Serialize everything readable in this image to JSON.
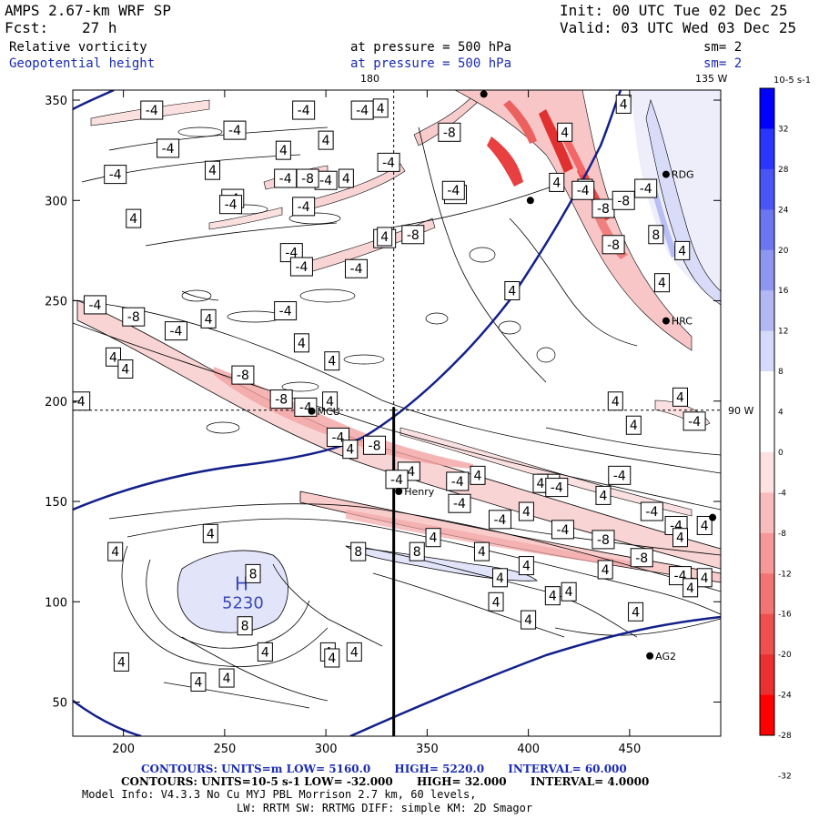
{
  "header": {
    "model_name": "AMPS 2.67-km WRF SP",
    "init": "Init: 00 UTC Tue 02 Dec 25",
    "fcst_label": "Fcst:",
    "fcst_value": "27 h",
    "valid": "Valid: 03 UTC Wed 03 Dec 25",
    "field1_name": "Relative vorticity",
    "field1_level": "at pressure =  500 hPa",
    "field1_sm": "sm= 2",
    "field2_name": "Geopotential height",
    "field2_level": "at pressure =  500 hPa",
    "field2_sm": "sm= 2"
  },
  "map": {
    "lon_top_180": "180",
    "lon_top_135": "135 W",
    "lat_right_90": "90 W",
    "stations": [
      {
        "name": "RDG",
        "x": 468,
        "y": 313
      },
      {
        "name": "HRC",
        "x": 468,
        "y": 240
      },
      {
        "name": "MCU",
        "x": 293,
        "y": 195
      },
      {
        "name": "Henry",
        "x": 336,
        "y": 155
      },
      {
        "name": "AG2",
        "x": 460,
        "y": 73
      },
      {
        "name": "",
        "x": 378,
        "y": 353
      },
      {
        "name": "",
        "x": 401,
        "y": 300
      },
      {
        "name": "",
        "x": 491,
        "y": 142
      }
    ],
    "high_label": "H",
    "high_value": "5230",
    "high_pos": {
      "x": 255,
      "y": 103
    }
  },
  "chart_data": {
    "type": "contour",
    "xlim": [
      175,
      495
    ],
    "ylim": [
      33,
      355
    ],
    "xticks": [
      200,
      250,
      300,
      350,
      400,
      450
    ],
    "yticks": [
      50,
      100,
      150,
      200,
      250,
      300,
      350
    ],
    "section_line": {
      "x": 333.5,
      "y0": 33,
      "y1": 197
    },
    "crosshair": {
      "x": 333.5,
      "y": 195.5
    },
    "contour_labels": [
      {
        "v": "-4",
        "x": 214,
        "y": 345
      },
      {
        "v": "-4",
        "x": 255,
        "y": 335
      },
      {
        "v": "-4",
        "x": 222,
        "y": 326
      },
      {
        "v": "-4",
        "x": 196,
        "y": 313
      },
      {
        "v": "4",
        "x": 205,
        "y": 291
      },
      {
        "v": "4",
        "x": 244,
        "y": 315
      },
      {
        "v": "-4",
        "x": 289,
        "y": 345
      },
      {
        "v": "-4",
        "x": 300,
        "y": 310
      },
      {
        "v": "4",
        "x": 279,
        "y": 325
      },
      {
        "v": "-4",
        "x": 318,
        "y": 345
      },
      {
        "v": "4",
        "x": 327,
        "y": 346
      },
      {
        "v": "4",
        "x": 300,
        "y": 330
      },
      {
        "v": "-8",
        "x": 361,
        "y": 334
      },
      {
        "v": "-4",
        "x": 364,
        "y": 303
      },
      {
        "v": "-4",
        "x": 331,
        "y": 319
      },
      {
        "v": "-4",
        "x": 280,
        "y": 311
      },
      {
        "v": "-8",
        "x": 291,
        "y": 311
      },
      {
        "v": "4",
        "x": 310,
        "y": 311
      },
      {
        "v": "-4",
        "x": 254,
        "y": 301
      },
      {
        "v": "-4",
        "x": 253,
        "y": 298
      },
      {
        "v": "-4",
        "x": 289,
        "y": 297
      },
      {
        "v": "-8",
        "x": 343,
        "y": 283
      },
      {
        "v": "-4",
        "x": 329,
        "y": 281
      },
      {
        "v": "4",
        "x": 329,
        "y": 282
      },
      {
        "v": "-4",
        "x": 283,
        "y": 274
      },
      {
        "v": "-4",
        "x": 288,
        "y": 267
      },
      {
        "v": "-4",
        "x": 315,
        "y": 266
      },
      {
        "v": "-4",
        "x": 280,
        "y": 245
      },
      {
        "v": "4",
        "x": 288,
        "y": 229
      },
      {
        "v": "4",
        "x": 303,
        "y": 220
      },
      {
        "v": "-4",
        "x": 186,
        "y": 248
      },
      {
        "v": "-8",
        "x": 205,
        "y": 242
      },
      {
        "v": "-4",
        "x": 226,
        "y": 235
      },
      {
        "v": "4",
        "x": 242,
        "y": 241
      },
      {
        "v": "4",
        "x": 195,
        "y": 222
      },
      {
        "v": "4",
        "x": 201,
        "y": 216
      },
      {
        "v": "-8",
        "x": 259,
        "y": 213
      },
      {
        "v": "-8",
        "x": 278,
        "y": 201
      },
      {
        "v": "-4",
        "x": 178,
        "y": 200
      },
      {
        "v": "-4",
        "x": 290,
        "y": 197
      },
      {
        "v": "4",
        "x": 302,
        "y": 200
      },
      {
        "v": "-4",
        "x": 306,
        "y": 182
      },
      {
        "v": "-8",
        "x": 324,
        "y": 178
      },
      {
        "v": "4",
        "x": 312,
        "y": 176
      },
      {
        "v": "-4",
        "x": 341,
        "y": 165
      },
      {
        "v": "-4",
        "x": 365,
        "y": 160
      },
      {
        "v": "4",
        "x": 375,
        "y": 163
      },
      {
        "v": "-4",
        "x": 335,
        "y": 161
      },
      {
        "v": "-4",
        "x": 366,
        "y": 149
      },
      {
        "v": "-4",
        "x": 386,
        "y": 141
      },
      {
        "v": "4",
        "x": 399,
        "y": 145
      },
      {
        "v": "-4",
        "x": 410,
        "y": 159
      },
      {
        "v": "4",
        "x": 406,
        "y": 159
      },
      {
        "v": "-4",
        "x": 414,
        "y": 157
      },
      {
        "v": "4",
        "x": 437,
        "y": 153
      },
      {
        "v": "-4",
        "x": 445,
        "y": 163
      },
      {
        "v": "-4",
        "x": 417,
        "y": 136
      },
      {
        "v": "-8",
        "x": 437,
        "y": 131
      },
      {
        "v": "-8",
        "x": 456,
        "y": 122
      },
      {
        "v": "-4",
        "x": 461,
        "y": 145
      },
      {
        "v": "-4",
        "x": 473,
        "y": 138
      },
      {
        "v": "4",
        "x": 487,
        "y": 138
      },
      {
        "v": "-4",
        "x": 475,
        "y": 113
      },
      {
        "v": "4",
        "x": 487,
        "y": 112
      },
      {
        "v": "4",
        "x": 475,
        "y": 202
      },
      {
        "v": "4",
        "x": 452,
        "y": 188
      },
      {
        "v": "4",
        "x": 443,
        "y": 200
      },
      {
        "v": "-4",
        "x": 482,
        "y": 190
      },
      {
        "v": "4",
        "x": 475,
        "y": 132
      },
      {
        "v": "4",
        "x": 480,
        "y": 107
      },
      {
        "v": "4",
        "x": 243,
        "y": 134
      },
      {
        "v": "4",
        "x": 196,
        "y": 125
      },
      {
        "v": "8",
        "x": 264,
        "y": 114
      },
      {
        "v": "8",
        "x": 260,
        "y": 88
      },
      {
        "v": "8",
        "x": 316,
        "y": 125
      },
      {
        "v": "8",
        "x": 345,
        "y": 125
      },
      {
        "v": "4",
        "x": 377,
        "y": 125
      },
      {
        "v": "4",
        "x": 399,
        "y": 118
      },
      {
        "v": "4",
        "x": 420,
        "y": 105
      },
      {
        "v": "4",
        "x": 384,
        "y": 100
      },
      {
        "v": "4",
        "x": 301,
        "y": 75
      },
      {
        "v": "4",
        "x": 314,
        "y": 75
      },
      {
        "v": "4",
        "x": 353,
        "y": 132
      },
      {
        "v": "4",
        "x": 438,
        "y": 116
      },
      {
        "v": "4",
        "x": 412,
        "y": 103
      },
      {
        "v": "4",
        "x": 453,
        "y": 95
      },
      {
        "v": "4",
        "x": 400,
        "y": 91
      },
      {
        "v": "4",
        "x": 270,
        "y": 75
      },
      {
        "v": "4",
        "x": 199,
        "y": 70
      },
      {
        "v": "4",
        "x": 237,
        "y": 60
      },
      {
        "v": "4",
        "x": 251,
        "y": 62
      },
      {
        "v": "4",
        "x": 303,
        "y": 72
      },
      {
        "v": "4",
        "x": 386,
        "y": 112
      },
      {
        "v": "4",
        "x": 392,
        "y": 255
      },
      {
        "v": "4",
        "x": 418,
        "y": 334
      },
      {
        "v": "-4",
        "x": 363,
        "y": 305
      },
      {
        "v": "4",
        "x": 428,
        "y": 306
      },
      {
        "v": "-8",
        "x": 437,
        "y": 296
      },
      {
        "v": "-8",
        "x": 447,
        "y": 300
      },
      {
        "v": "4",
        "x": 447,
        "y": 348
      },
      {
        "v": "8",
        "x": 463,
        "y": 283
      },
      {
        "v": "-8",
        "x": 442,
        "y": 278
      },
      {
        "v": "4",
        "x": 466,
        "y": 259
      },
      {
        "v": "4",
        "x": 414,
        "y": 309
      },
      {
        "v": "-4",
        "x": 427,
        "y": 305
      },
      {
        "v": "-4",
        "x": 458,
        "y": 306
      },
      {
        "v": "4",
        "x": 476,
        "y": 275
      }
    ],
    "colorbar": {
      "title": "10-5 s-1",
      "ticks": [
        32,
        28,
        24,
        20,
        16,
        12,
        8,
        4,
        0,
        -4,
        -8,
        -12,
        -16,
        -20,
        -24,
        -28,
        -32
      ],
      "colors": [
        "#0000ff",
        "#2a35ff",
        "#4a55f6",
        "#6b76f0",
        "#8d96f0",
        "#b1b8f4",
        "#d5d9fa",
        "#ffffff",
        "#ffffff",
        "#fde0e0",
        "#f9bcbc",
        "#f69898",
        "#f27474",
        "#ee5050",
        "#ea3030",
        "#ff0000"
      ]
    }
  },
  "footer": {
    "line1_prefix": "CONTOURS:  UNITS=m  LOW=  5160.0",
    "line1_high": "HIGH=  5220.0",
    "line1_interval": "INTERVAL=   60.000",
    "line2_prefix": "CONTOURS:  UNITS=10-5 s-1   LOW= -32.000",
    "line2_high": "HIGH=  32.000",
    "line2_interval": "INTERVAL=   4.0000",
    "model_info": "Model Info: V4.3.3    No Cu   MYJ PBL  Morrison        2.7 km,  60 levels,",
    "model_info2": "LW: RRTM SW: RRTMG   DIFF: simple KM: 2D Smagor"
  }
}
